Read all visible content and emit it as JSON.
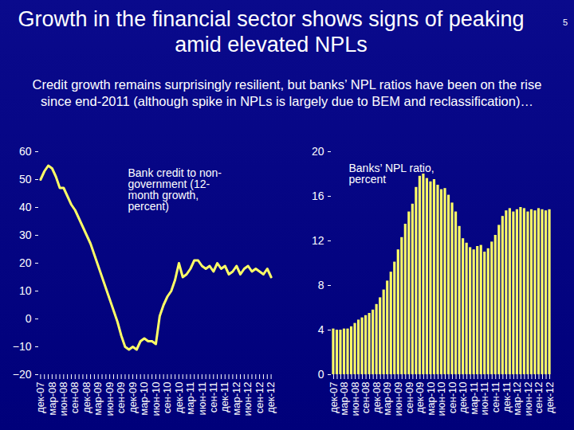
{
  "title": "Growth in the financial sector shows signs of peaking amid elevated NPLs",
  "subtitle": "Credit growth remains surprisingly resilient, but banks’ NPL ratios have been on the rise since end-2011 (although spike in NPLs is largely due to BEM and reclassification)…",
  "page_number": 5,
  "chart_data": [
    {
      "type": "line",
      "title": "Bank credit to non-government (12-month growth, percent)",
      "categories": [
        "дек-07",
        null,
        null,
        "мар-08",
        null,
        null,
        "июн-08",
        null,
        null,
        "сен-08",
        null,
        null,
        "дек-08",
        null,
        null,
        "мар-09",
        null,
        null,
        "июн-09",
        null,
        null,
        "сен-09",
        null,
        null,
        "дек-09",
        null,
        null,
        "мар-10",
        null,
        null,
        "июн-10",
        null,
        null,
        "сен-10",
        null,
        null,
        "дек-10",
        null,
        null,
        "мар-11",
        null,
        null,
        "июн-11",
        null,
        null,
        "сен-11",
        null,
        null,
        "дек-11",
        null,
        null,
        "мар-12",
        null,
        null,
        "июн-12",
        null,
        null,
        "сен-12",
        null,
        null,
        "дек-12"
      ],
      "values": [
        50,
        53,
        55,
        54,
        51,
        47,
        47,
        44,
        41,
        39,
        36,
        33,
        30,
        27,
        23,
        19,
        15,
        11,
        7,
        3,
        -1,
        -6,
        -10,
        -11,
        -10,
        -11,
        -8,
        -7,
        -8,
        -8,
        -9,
        1,
        5,
        8,
        10,
        14,
        20,
        15,
        16,
        18,
        21,
        21,
        19,
        18,
        19,
        17,
        20,
        18,
        19,
        16,
        17,
        19,
        16,
        18,
        19,
        17,
        18,
        17,
        16,
        18,
        15
      ],
      "color": "#ffff66",
      "ylim": [
        -20,
        60
      ],
      "yticks": [
        -20,
        -10,
        0,
        10,
        20,
        30,
        40,
        50,
        60
      ],
      "grid": false
    },
    {
      "type": "bar",
      "title": "Banks’ NPL ratio, percent",
      "categories": [
        "дек-07",
        null,
        null,
        "мар-08",
        null,
        null,
        "июн-08",
        null,
        null,
        "сен-08",
        null,
        null,
        "дек-08",
        null,
        null,
        "мар-09",
        null,
        null,
        "июн-09",
        null,
        null,
        "сен-09",
        null,
        null,
        "дек-09",
        null,
        null,
        "мар-10",
        null,
        null,
        "июн-10",
        null,
        null,
        "сен-10",
        null,
        null,
        "дек-10",
        null,
        null,
        "мар-11",
        null,
        null,
        "июн-11",
        null,
        null,
        "сен-11",
        null,
        null,
        "дек-11",
        null,
        null,
        "мар-12",
        null,
        null,
        "июн-12",
        null,
        null,
        "сен-12",
        null,
        null,
        "дек-12"
      ],
      "values": [
        4.1,
        4.0,
        4.0,
        4.1,
        4.1,
        4.3,
        4.6,
        4.9,
        5.1,
        5.3,
        5.5,
        5.8,
        6.3,
        6.9,
        7.6,
        8.4,
        9.2,
        10.1,
        11.2,
        12.3,
        13.5,
        14.6,
        15.3,
        16.8,
        17.8,
        18.0,
        17.6,
        17.3,
        17.5,
        17.0,
        16.6,
        16.7,
        16.1,
        15.4,
        14.6,
        13.3,
        12.2,
        11.8,
        11.4,
        11.2,
        11.5,
        11.6,
        11.0,
        11.3,
        11.9,
        12.5,
        13.4,
        14.2,
        14.7,
        14.9,
        14.6,
        14.8,
        15.0,
        14.9,
        14.6,
        14.8,
        14.7,
        14.9,
        14.8,
        14.7,
        14.8
      ],
      "color": "#ffff66",
      "ylim": [
        0,
        20
      ],
      "yticks": [
        0,
        4,
        8,
        12,
        16,
        20
      ],
      "grid": false
    }
  ]
}
